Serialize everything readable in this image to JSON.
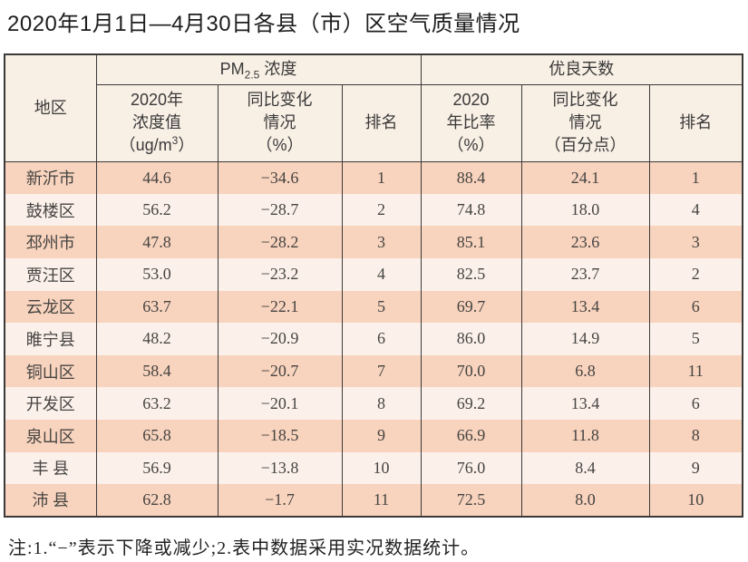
{
  "page": {
    "title": "2020年1月1日—4月30日各县（市）区空气质量情况",
    "note": "注:1.“−”表示下降或减少;2.表中数据采用实况数据统计。"
  },
  "colors": {
    "header_bg": "#f8efe5",
    "row_odd_bg": "#f8d3bd",
    "row_even_bg": "#fcf1ea",
    "border": "#3b3a39",
    "text": "#454442"
  },
  "table": {
    "header": {
      "region": "地区",
      "group_pm": {
        "prefix": "PM",
        "sub": "2.5",
        "suffix": " 浓度"
      },
      "group_good": "优良天数",
      "pm_value": {
        "l1": "2020年",
        "l2": "浓度值",
        "unit_open": "（ug/m",
        "unit_sup": "3",
        "unit_close": "）"
      },
      "pm_change": "同比变化\n情况\n（%）",
      "pm_rank": "排名",
      "good_ratio": "2020\n年比率\n（%）",
      "good_change": "同比变化\n情况\n（百分点）",
      "good_rank": "排名"
    },
    "rows": [
      {
        "region": "新沂市",
        "pm_value": "44.6",
        "pm_change": "−34.6",
        "pm_rank": "1",
        "good_ratio": "88.4",
        "good_change": "24.1",
        "good_rank": "1"
      },
      {
        "region": "鼓楼区",
        "pm_value": "56.2",
        "pm_change": "−28.7",
        "pm_rank": "2",
        "good_ratio": "74.8",
        "good_change": "18.0",
        "good_rank": "4"
      },
      {
        "region": "邳州市",
        "pm_value": "47.8",
        "pm_change": "−28.2",
        "pm_rank": "3",
        "good_ratio": "85.1",
        "good_change": "23.6",
        "good_rank": "3"
      },
      {
        "region": "贾汪区",
        "pm_value": "53.0",
        "pm_change": "−23.2",
        "pm_rank": "4",
        "good_ratio": "82.5",
        "good_change": "23.7",
        "good_rank": "2"
      },
      {
        "region": "云龙区",
        "pm_value": "63.7",
        "pm_change": "−22.1",
        "pm_rank": "5",
        "good_ratio": "69.7",
        "good_change": "13.4",
        "good_rank": "6"
      },
      {
        "region": "睢宁县",
        "pm_value": "48.2",
        "pm_change": "−20.9",
        "pm_rank": "6",
        "good_ratio": "86.0",
        "good_change": "14.9",
        "good_rank": "5"
      },
      {
        "region": "铜山区",
        "pm_value": "58.4",
        "pm_change": "−20.7",
        "pm_rank": "7",
        "good_ratio": "70.0",
        "good_change": "6.8",
        "good_rank": "11"
      },
      {
        "region": "开发区",
        "pm_value": "63.2",
        "pm_change": "−20.1",
        "pm_rank": "8",
        "good_ratio": "69.2",
        "good_change": "13.4",
        "good_rank": "6"
      },
      {
        "region": "泉山区",
        "pm_value": "65.8",
        "pm_change": "−18.5",
        "pm_rank": "9",
        "good_ratio": "66.9",
        "good_change": "11.8",
        "good_rank": "8"
      },
      {
        "region": "丰 县",
        "pm_value": "56.9",
        "pm_change": "−13.8",
        "pm_rank": "10",
        "good_ratio": "76.0",
        "good_change": "8.4",
        "good_rank": "9"
      },
      {
        "region": "沛 县",
        "pm_value": "62.8",
        "pm_change": "−1.7",
        "pm_rank": "11",
        "good_ratio": "72.5",
        "good_change": "8.0",
        "good_rank": "10"
      }
    ]
  }
}
